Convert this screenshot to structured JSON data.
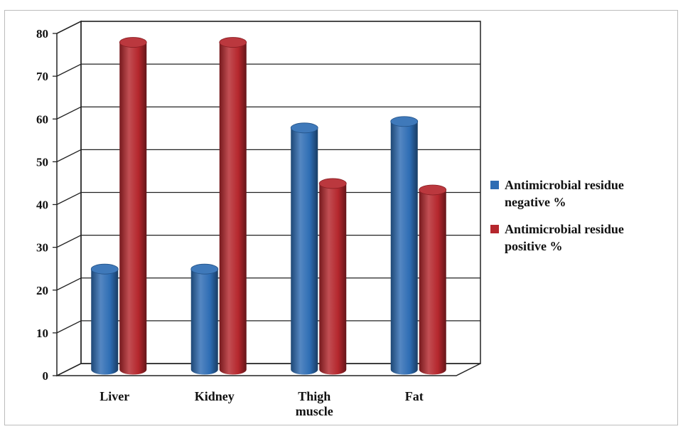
{
  "chart_data": {
    "type": "bar",
    "categories": [
      "Liver",
      "Kidney",
      "Thigh muscle",
      "Fat"
    ],
    "category_lines": [
      [
        "Liver"
      ],
      [
        "Kidney"
      ],
      [
        "Thigh",
        "muscle"
      ],
      [
        "Fat"
      ]
    ],
    "series": [
      {
        "name": "Antimicrobial residue negative %",
        "legend_lines": [
          "Antimicrobial residue",
          "negative %"
        ],
        "color": "#2e6db4",
        "values": [
          23.5,
          23.5,
          56.5,
          58
        ]
      },
      {
        "name": "Antimicrobial residue positive %",
        "legend_lines": [
          "Antimicrobial residue",
          "positive %"
        ],
        "color": "#b5272d",
        "values": [
          76.5,
          76.5,
          43.5,
          42
        ]
      }
    ],
    "title": "",
    "xlabel": "",
    "ylabel": "",
    "ylim": [
      0,
      80
    ],
    "yticks": [
      0,
      10,
      20,
      30,
      40,
      50,
      60,
      70,
      80
    ],
    "grid": true,
    "legend": "right",
    "style": "3d-cylinder"
  }
}
